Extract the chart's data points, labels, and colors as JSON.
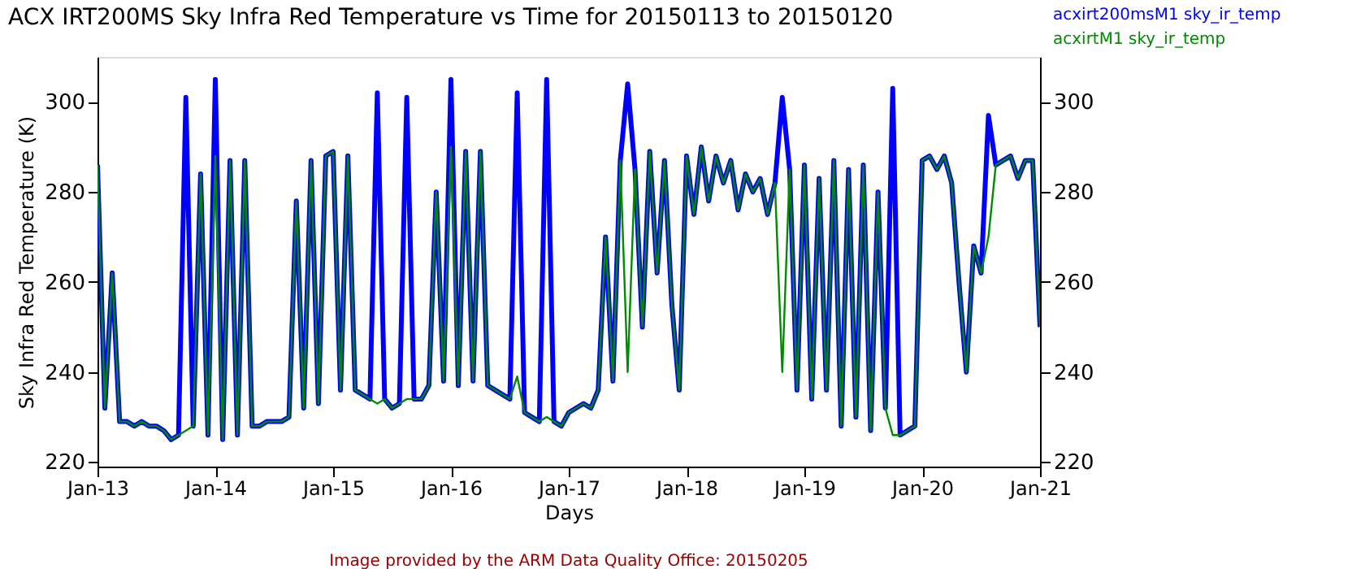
{
  "chart_data": {
    "type": "line",
    "title": "ACX IRT200MS Sky Infra Red Temperature vs Time for 20150113 to 20150120",
    "xlabel": "Days",
    "ylabel": "Sky Infra Red Temperature (K)",
    "annotations": [
      "Image provided by the ARM Data Quality Office: 20150205"
    ],
    "legend": "top right",
    "grid": false,
    "marker": "none",
    "line_style": "solid",
    "xlim": [
      "2015-01-13T00:00",
      "2015-01-21T00:00"
    ],
    "xticks": [
      {
        "value": "2015-01-13T00:00",
        "label": "Jan-13"
      },
      {
        "value": "2015-01-14T00:00",
        "label": "Jan-14"
      },
      {
        "value": "2015-01-15T00:00",
        "label": "Jan-15"
      },
      {
        "value": "2015-01-16T00:00",
        "label": "Jan-16"
      },
      {
        "value": "2015-01-17T00:00",
        "label": "Jan-17"
      },
      {
        "value": "2015-01-18T00:00",
        "label": "Jan-18"
      },
      {
        "value": "2015-01-19T00:00",
        "label": "Jan-19"
      },
      {
        "value": "2015-01-20T00:00",
        "label": "Jan-20"
      },
      {
        "value": "2015-01-21T00:00",
        "label": "Jan-21"
      }
    ],
    "x": [
      "2015-01-13T00:00",
      "2015-01-13T01:30",
      "2015-01-13T03:00",
      "2015-01-13T04:30",
      "2015-01-13T06:00",
      "2015-01-13T07:30",
      "2015-01-13T09:00",
      "2015-01-13T10:30",
      "2015-01-13T12:00",
      "2015-01-13T13:30",
      "2015-01-13T15:00",
      "2015-01-13T16:30",
      "2015-01-13T18:00",
      "2015-01-13T19:30",
      "2015-01-13T21:00",
      "2015-01-13T22:30",
      "2015-01-14T00:00",
      "2015-01-14T01:30",
      "2015-01-14T03:00",
      "2015-01-14T04:30",
      "2015-01-14T06:00",
      "2015-01-14T07:30",
      "2015-01-14T09:00",
      "2015-01-14T10:30",
      "2015-01-14T12:00",
      "2015-01-14T13:30",
      "2015-01-14T15:00",
      "2015-01-14T16:30",
      "2015-01-14T18:00",
      "2015-01-14T19:30",
      "2015-01-14T21:00",
      "2015-01-14T22:30",
      "2015-01-15T00:00",
      "2015-01-15T01:30",
      "2015-01-15T03:00",
      "2015-01-15T04:30",
      "2015-01-15T06:00",
      "2015-01-15T07:30",
      "2015-01-15T09:00",
      "2015-01-15T10:30",
      "2015-01-15T12:00",
      "2015-01-15T13:30",
      "2015-01-15T15:00",
      "2015-01-15T16:30",
      "2015-01-15T18:00",
      "2015-01-15T19:30",
      "2015-01-15T21:00",
      "2015-01-15T22:30",
      "2015-01-16T00:00",
      "2015-01-16T01:30",
      "2015-01-16T03:00",
      "2015-01-16T04:30",
      "2015-01-16T06:00",
      "2015-01-16T07:30",
      "2015-01-16T09:00",
      "2015-01-16T10:30",
      "2015-01-16T12:00",
      "2015-01-16T13:30",
      "2015-01-16T15:00",
      "2015-01-16T16:30",
      "2015-01-16T18:00",
      "2015-01-16T19:30",
      "2015-01-16T21:00",
      "2015-01-16T22:30",
      "2015-01-17T00:00",
      "2015-01-17T01:30",
      "2015-01-17T03:00",
      "2015-01-17T04:30",
      "2015-01-17T06:00",
      "2015-01-17T07:30",
      "2015-01-17T09:00",
      "2015-01-17T10:30",
      "2015-01-17T12:00",
      "2015-01-17T13:30",
      "2015-01-17T15:00",
      "2015-01-17T16:30",
      "2015-01-17T18:00",
      "2015-01-17T19:30",
      "2015-01-17T21:00",
      "2015-01-17T22:30",
      "2015-01-18T00:00",
      "2015-01-18T01:30",
      "2015-01-18T03:00",
      "2015-01-18T04:30",
      "2015-01-18T06:00",
      "2015-01-18T07:30",
      "2015-01-18T09:00",
      "2015-01-18T10:30",
      "2015-01-18T12:00",
      "2015-01-18T13:30",
      "2015-01-18T15:00",
      "2015-01-18T16:30",
      "2015-01-18T18:00",
      "2015-01-18T19:30",
      "2015-01-18T21:00",
      "2015-01-18T22:30",
      "2015-01-19T00:00",
      "2015-01-19T01:30",
      "2015-01-19T03:00",
      "2015-01-19T04:30",
      "2015-01-19T06:00",
      "2015-01-19T07:30",
      "2015-01-19T09:00",
      "2015-01-19T10:30",
      "2015-01-19T12:00",
      "2015-01-19T13:30",
      "2015-01-19T15:00",
      "2015-01-19T16:30",
      "2015-01-19T18:00",
      "2015-01-19T19:30",
      "2015-01-19T21:00",
      "2015-01-19T22:30",
      "2015-01-20T00:00",
      "2015-01-20T01:30",
      "2015-01-20T03:00",
      "2015-01-20T04:30",
      "2015-01-20T06:00",
      "2015-01-20T07:30",
      "2015-01-20T09:00",
      "2015-01-20T10:30",
      "2015-01-20T12:00",
      "2015-01-20T13:30",
      "2015-01-20T15:00",
      "2015-01-20T16:30",
      "2015-01-20T18:00",
      "2015-01-20T19:30",
      "2015-01-20T21:00",
      "2015-01-20T22:30",
      "2015-01-21T00:00"
    ],
    "ylim": [
      219,
      310
    ],
    "yticks": [
      220,
      240,
      260,
      280,
      300
    ],
    "y2lim": [
      219,
      310
    ],
    "y2ticks": [
      220,
      240,
      260,
      280,
      300
    ],
    "series": [
      {
        "name": "acxirt200msM1 sky_ir_temp",
        "color": "#0000ff",
        "values": [
          286,
          232,
          262,
          229,
          229,
          228,
          229,
          228,
          228,
          227,
          225,
          226,
          301,
          228,
          284,
          226,
          305,
          225,
          287,
          226,
          287,
          228,
          228,
          229,
          229,
          229,
          230,
          278,
          232,
          287,
          233,
          288,
          289,
          236,
          288,
          236,
          235,
          234,
          302,
          234,
          232,
          233,
          301,
          234,
          234,
          237,
          280,
          238,
          305,
          237,
          289,
          238,
          289,
          237,
          236,
          235,
          234,
          302,
          231,
          230,
          229,
          305,
          229,
          228,
          231,
          232,
          233,
          232,
          236,
          270,
          238,
          287,
          304,
          285,
          250,
          289,
          262,
          287,
          255,
          236,
          288,
          275,
          290,
          278,
          288,
          282,
          287,
          276,
          284,
          280,
          283,
          275,
          282,
          301,
          285,
          236,
          286,
          234,
          283,
          236,
          287,
          228,
          285,
          230,
          286,
          227,
          280,
          232,
          303,
          226,
          227,
          228,
          287,
          288,
          285,
          288,
          282,
          260,
          240,
          268,
          262,
          297,
          286,
          287,
          288,
          283,
          287,
          287,
          250
        ]
      },
      {
        "name": "acxirtM1 sky_ir_temp",
        "color": "#008c00",
        "values": [
          286,
          232,
          262,
          229,
          229,
          228,
          229,
          228,
          228,
          227,
          225,
          226,
          227,
          228,
          284,
          226,
          288,
          225,
          287,
          226,
          287,
          228,
          228,
          229,
          229,
          229,
          230,
          278,
          232,
          287,
          233,
          288,
          289,
          236,
          288,
          236,
          235,
          234,
          233,
          234,
          232,
          233,
          234,
          234,
          234,
          237,
          280,
          238,
          290,
          237,
          289,
          238,
          289,
          237,
          236,
          235,
          234,
          239,
          231,
          230,
          229,
          230,
          229,
          228,
          231,
          232,
          233,
          232,
          236,
          270,
          238,
          287,
          240,
          285,
          250,
          289,
          262,
          287,
          255,
          236,
          288,
          275,
          290,
          278,
          288,
          282,
          287,
          276,
          284,
          280,
          283,
          275,
          282,
          240,
          285,
          236,
          286,
          234,
          283,
          236,
          287,
          228,
          285,
          230,
          286,
          227,
          280,
          232,
          226,
          226,
          227,
          228,
          287,
          288,
          285,
          288,
          282,
          260,
          240,
          268,
          262,
          270,
          286,
          287,
          288,
          283,
          287,
          287,
          250
        ]
      }
    ]
  }
}
